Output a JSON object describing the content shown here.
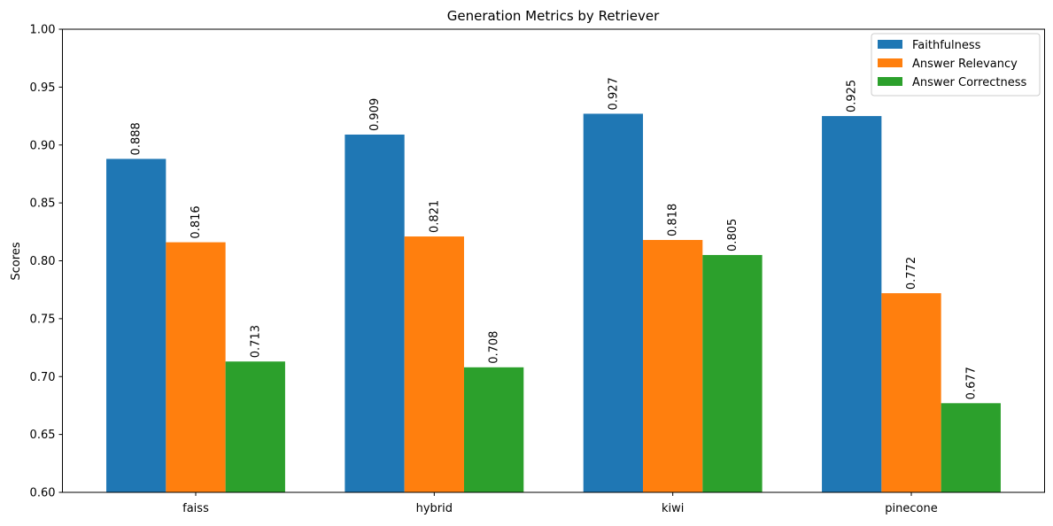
{
  "chart_data": {
    "type": "bar",
    "title": "Generation Metrics by Retriever",
    "xlabel": "",
    "ylabel": "Scores",
    "ylim": [
      0.6,
      1.0
    ],
    "yticks": [
      "0.60",
      "0.65",
      "0.70",
      "0.75",
      "0.80",
      "0.85",
      "0.90",
      "0.95",
      "1.00"
    ],
    "categories": [
      "faiss",
      "hybrid",
      "kiwi",
      "pinecone"
    ],
    "series": [
      {
        "name": "Faithfulness",
        "color": "#1f77b4",
        "values": [
          0.888,
          0.909,
          0.927,
          0.925
        ],
        "labels": [
          "0.888",
          "0.909",
          "0.927",
          "0.925"
        ]
      },
      {
        "name": "Answer Relevancy",
        "color": "#ff7f0e",
        "values": [
          0.816,
          0.821,
          0.818,
          0.772
        ],
        "labels": [
          "0.816",
          "0.821",
          "0.818",
          "0.772"
        ]
      },
      {
        "name": "Answer Correctness",
        "color": "#2ca02c",
        "values": [
          0.713,
          0.708,
          0.805,
          0.677
        ],
        "labels": [
          "0.713",
          "0.708",
          "0.805",
          "0.677"
        ]
      }
    ],
    "legend_position": "top-right",
    "grid": false
  }
}
